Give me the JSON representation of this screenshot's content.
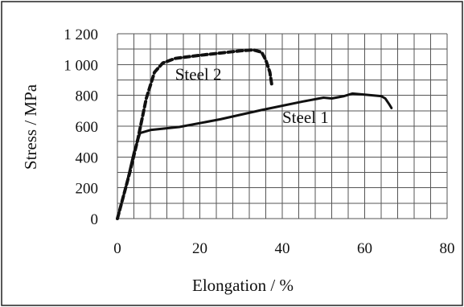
{
  "chart_data": {
    "type": "line",
    "title": "",
    "xlabel": "Elongation / %",
    "ylabel": "Stress / MPa",
    "xlim": [
      0,
      80
    ],
    "ylim": [
      0,
      1200
    ],
    "x_ticks": [
      0,
      20,
      40,
      60,
      80
    ],
    "x_tick_labels": [
      "0",
      "20",
      "40",
      "60",
      "80"
    ],
    "y_ticks": [
      0,
      200,
      400,
      600,
      800,
      1000,
      1200
    ],
    "y_tick_labels": [
      "0",
      "200",
      "400",
      "600",
      "800",
      "1 000",
      "1 200"
    ],
    "grid": {
      "major": true,
      "x_minor_step": 4,
      "y_step": 100
    },
    "legend": "none",
    "series": [
      {
        "name": "Steel 1",
        "style": "solid",
        "color": "#111111",
        "label_at": {
          "x": 40,
          "y": 620
        },
        "points": [
          [
            0,
            0
          ],
          [
            2,
            200
          ],
          [
            4,
            430
          ],
          [
            5.5,
            555
          ],
          [
            8,
            575
          ],
          [
            15,
            595
          ],
          [
            25,
            645
          ],
          [
            35,
            705
          ],
          [
            45,
            760
          ],
          [
            50,
            785
          ],
          [
            52,
            780
          ],
          [
            55,
            795
          ],
          [
            57,
            812
          ],
          [
            60,
            805
          ],
          [
            64,
            795
          ],
          [
            65,
            780
          ],
          [
            66,
            740
          ],
          [
            66.5,
            718
          ]
        ]
      },
      {
        "name": "Steel 2",
        "style": "dashed",
        "color": "#111111",
        "label_at": {
          "x": 14,
          "y": 900
        },
        "points": [
          [
            0,
            0
          ],
          [
            3,
            300
          ],
          [
            5,
            520
          ],
          [
            7,
            780
          ],
          [
            9,
            950
          ],
          [
            11,
            1010
          ],
          [
            14,
            1040
          ],
          [
            20,
            1060
          ],
          [
            25,
            1075
          ],
          [
            30,
            1090
          ],
          [
            33,
            1095
          ],
          [
            35,
            1080
          ],
          [
            36,
            1030
          ],
          [
            37,
            950
          ],
          [
            37.5,
            860
          ]
        ]
      }
    ]
  }
}
